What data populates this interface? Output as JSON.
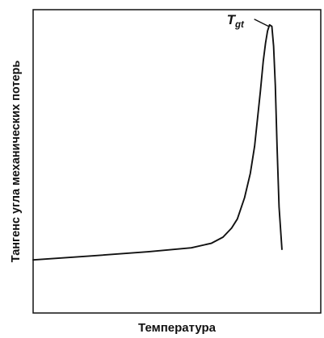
{
  "chart_data": {
    "type": "line",
    "title": "",
    "xlabel": "Температура",
    "ylabel": "Тангенс угла механических потерь",
    "xlim": [
      0,
      100
    ],
    "ylim": [
      0,
      100
    ],
    "grid": false,
    "series": [
      {
        "color": "#111111",
        "x": [
          0,
          20,
          40,
          55,
          62,
          66,
          69,
          71,
          73.5,
          75.5,
          77,
          78,
          79,
          80,
          80.8,
          81.5,
          82.2,
          83,
          83.6,
          84.2,
          84.8,
          85.5,
          86.5
        ],
        "y": [
          17.5,
          18.8,
          20.2,
          21.5,
          23.0,
          25.0,
          28.0,
          31.0,
          38.0,
          46.0,
          55.0,
          64.0,
          73.0,
          83.0,
          89.0,
          93.0,
          95.0,
          94.5,
          88.0,
          75.0,
          55.0,
          35.0,
          21.0
        ]
      }
    ],
    "annotations": [
      {
        "text": "T",
        "subscript": "gt",
        "x": 82.2,
        "y": 95.0
      }
    ],
    "frame_color": "#111111",
    "line_color": "#111111"
  }
}
